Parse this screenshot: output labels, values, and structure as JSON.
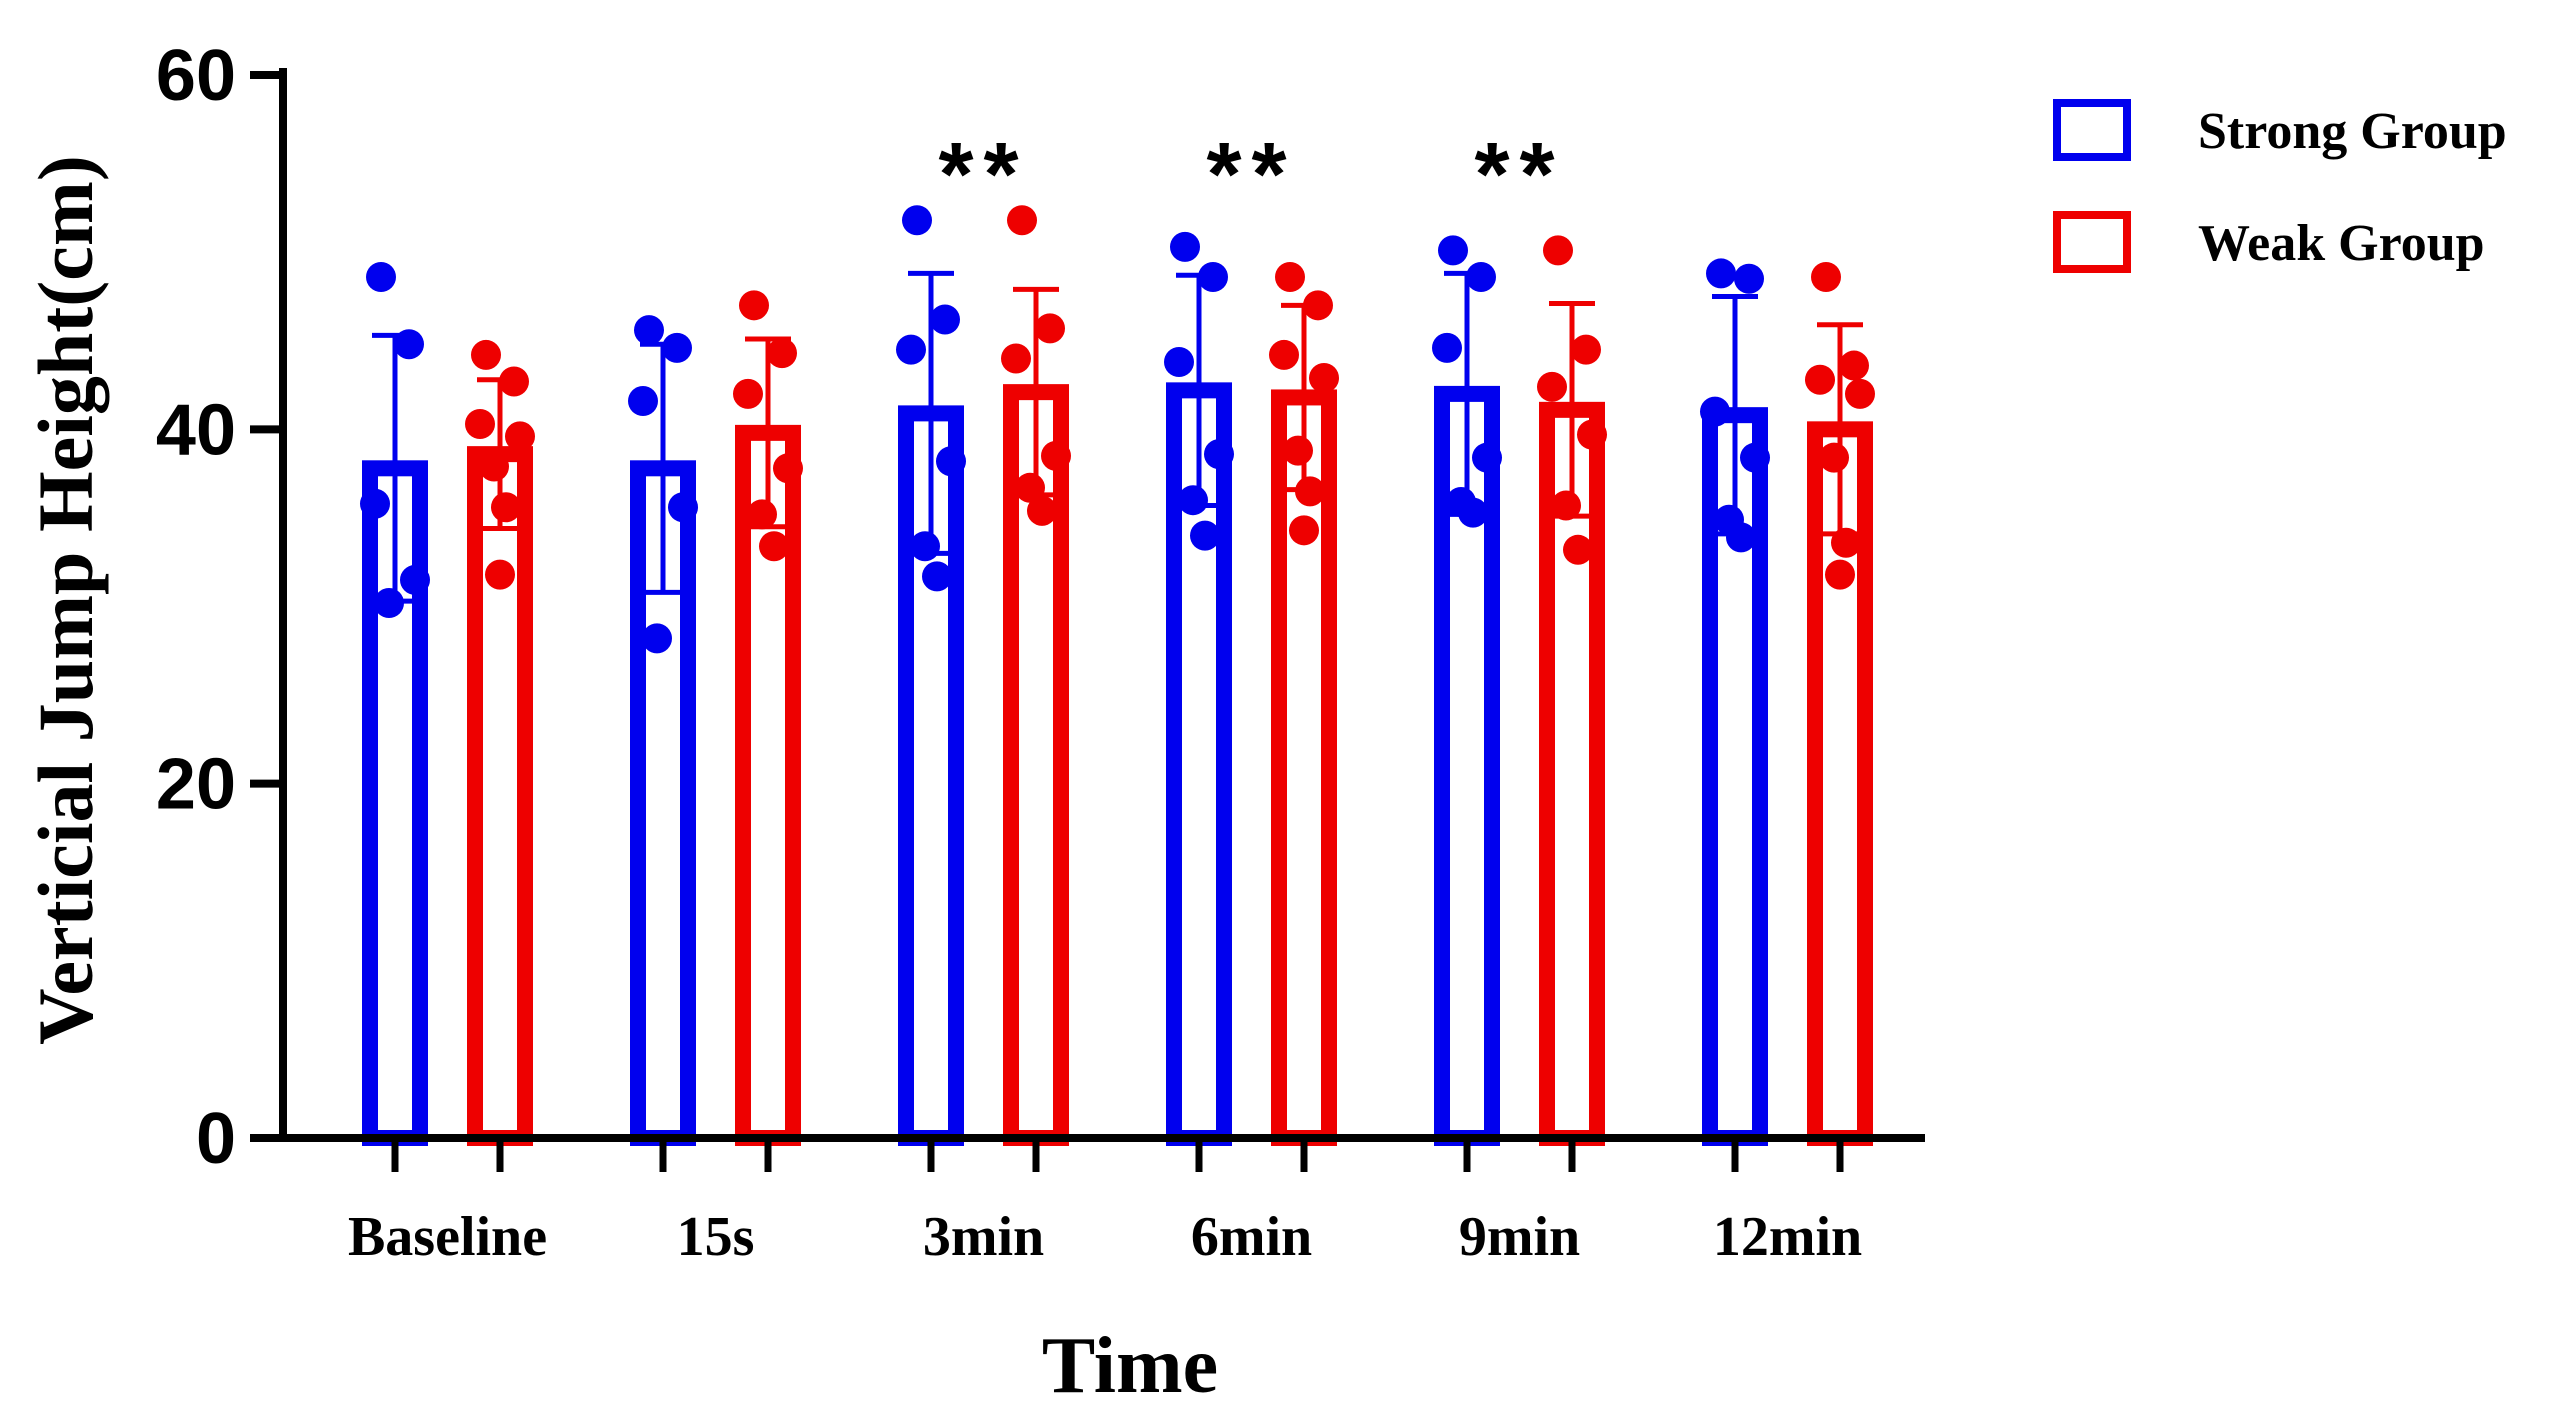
{
  "chart_data": {
    "type": "bar",
    "title": "",
    "xlabel": "Time",
    "ylabel": "Verticial Jump Height(cm)",
    "ylim": [
      0,
      60
    ],
    "yticks": [
      0,
      20,
      40,
      60
    ],
    "categories": [
      "Baseline",
      "15s",
      "3min",
      "6min",
      "9min",
      "12min"
    ],
    "series": [
      {
        "name": "Strong Group",
        "color": "#0000ee",
        "values": [
          37.8,
          37.8,
          40.9,
          42.2,
          42.0,
          40.8
        ],
        "sd": [
          7.5,
          7.0,
          7.9,
          6.5,
          6.8,
          6.7
        ],
        "points": [
          [
            48.6,
            44.8,
            35.8,
            31.5,
            30.2
          ],
          [
            45.6,
            44.6,
            41.6,
            35.6,
            28.2
          ],
          [
            51.8,
            46.2,
            44.5,
            38.2,
            33.4,
            31.7
          ],
          [
            50.3,
            48.6,
            43.8,
            38.6,
            36.0,
            34.0
          ],
          [
            50.1,
            48.6,
            44.6,
            38.4,
            35.9,
            35.3
          ],
          [
            48.8,
            48.5,
            41.0,
            38.4,
            34.9,
            33.9
          ]
        ]
      },
      {
        "name": "Weak Group",
        "color": "#ee0000",
        "values": [
          38.6,
          39.8,
          42.1,
          41.8,
          41.1,
          40.0
        ],
        "sd": [
          4.2,
          5.3,
          5.8,
          5.2,
          6.0,
          5.9
        ],
        "points": [
          [
            44.2,
            42.7,
            40.3,
            39.6,
            37.9,
            35.6,
            31.8
          ],
          [
            47.0,
            44.3,
            42.0,
            37.8,
            35.2,
            33.4
          ],
          [
            51.8,
            45.7,
            44.0,
            38.5,
            36.7,
            35.4
          ],
          [
            48.6,
            47.0,
            44.2,
            42.9,
            38.8,
            36.5,
            34.3
          ],
          [
            50.1,
            44.5,
            42.4,
            39.7,
            35.7,
            33.2
          ],
          [
            48.6,
            43.6,
            42.8,
            42.0,
            38.4,
            33.6,
            31.8
          ]
        ]
      }
    ],
    "significance": [
      {
        "category": "3min",
        "label": "**"
      },
      {
        "category": "6min",
        "label": "**"
      },
      {
        "category": "9min",
        "label": "**"
      }
    ],
    "legend_position": "top-right"
  }
}
